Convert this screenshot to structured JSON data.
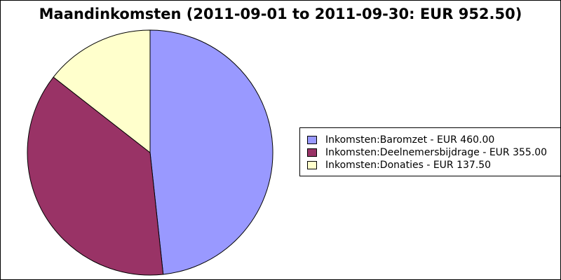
{
  "chart_data": {
    "type": "pie",
    "title": "Maandinkomsten (2011-09-01 to 2011-09-30: EUR 952.50)",
    "legend_position": "right",
    "slices": [
      {
        "label": "Inkomsten:Baromzet - EUR 460.00",
        "value": 460.0,
        "color": "#9999ff"
      },
      {
        "label": "Inkomsten:Deelnemersbijdrage - EUR 355.00",
        "value": 355.0,
        "color": "#993366"
      },
      {
        "label": "Inkomsten:Donaties - EUR 137.50",
        "value": 137.5,
        "color": "#ffffcc"
      }
    ]
  }
}
